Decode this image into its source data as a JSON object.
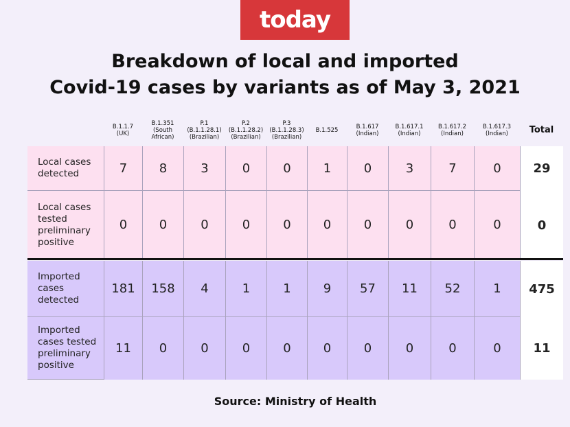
{
  "logo": "today",
  "title": [
    "Breakdown of local and imported",
    "Covid-19 cases by variants as of May 3, 2021"
  ],
  "table": {
    "columns": [
      [
        "B.1.1.7",
        "(UK)"
      ],
      [
        "B.1.351",
        "(South",
        "African)"
      ],
      [
        "P.1",
        "(B.1.1.28.1)",
        "(Brazilian)"
      ],
      [
        "P.2",
        "(B.1.1.28.2)",
        "(Brazilian)"
      ],
      [
        "P.3",
        "(B.1.1.28.3)",
        "(Brazilian)"
      ],
      [
        "B.1.525"
      ],
      [
        "B.1.617",
        "(Indian)"
      ],
      [
        "B.1.617.1",
        "(Indian)"
      ],
      [
        "B.1.617.2",
        "(Indian)"
      ],
      [
        "B.1.617.3",
        "(Indian)"
      ],
      [
        "Total"
      ]
    ],
    "rows": [
      {
        "label": [
          "Local cases",
          "detected"
        ],
        "values": [
          7,
          8,
          3,
          0,
          0,
          1,
          0,
          3,
          7,
          0,
          29
        ]
      },
      {
        "label": [
          "Local cases",
          "tested",
          "preliminary",
          "positive"
        ],
        "values": [
          0,
          0,
          0,
          0,
          0,
          0,
          0,
          0,
          0,
          0,
          0
        ]
      },
      {
        "label": [
          "Imported",
          "cases",
          "detected"
        ],
        "values": [
          181,
          158,
          4,
          1,
          1,
          9,
          57,
          11,
          52,
          1,
          475
        ]
      },
      {
        "label": [
          "Imported",
          "cases tested",
          "preliminary",
          "positive"
        ],
        "values": [
          11,
          0,
          0,
          0,
          0,
          0,
          0,
          0,
          0,
          0,
          11
        ]
      }
    ]
  },
  "source": "Source: Ministry of Health"
}
